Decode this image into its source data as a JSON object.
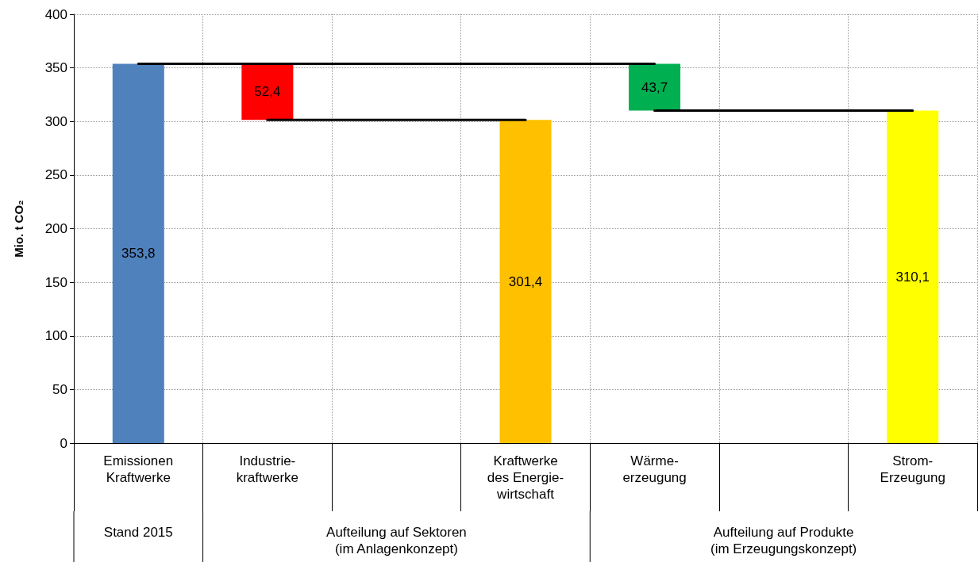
{
  "chart_data": {
    "type": "bar",
    "ylabel": "Mio. t CO₂",
    "categories": [
      "Emissionen\nKraftwerke",
      "Industrie-\nkraftwerke",
      null,
      "Kraftwerke\ndes Energie-\nwirtschaft",
      "Wärme-\nerzeugung",
      null,
      "Strom-\nErzeugung"
    ],
    "series": [
      {
        "values": [
          353.8,
          52.4,
          null,
          301.4,
          43.7,
          null,
          310.1
        ],
        "base": [
          0,
          301.4,
          null,
          0,
          310.1,
          null,
          0
        ],
        "colors": [
          "#4f81bd",
          "#ff0000",
          "#000000",
          "#ffc000",
          "#00b050",
          "#000000",
          "#ffff00"
        ],
        "value_labels": [
          "353,8",
          "52,4",
          null,
          "301,4",
          "43,7",
          null,
          "310,1"
        ]
      },
      {
        "type": "line",
        "color": "#000000",
        "values": [
          353.8,
          353.8,
          353.8,
          353.8,
          353.8,
          null,
          null
        ]
      },
      {
        "type": "line",
        "color": "#000000",
        "values": [
          null,
          301.4,
          301.4,
          301.4,
          null,
          null,
          null
        ]
      },
      {
        "type": "line",
        "color": "#000000",
        "values": [
          null,
          null,
          null,
          null,
          310.1,
          310.1,
          310.1
        ]
      }
    ],
    "marker": "none",
    "ylim": [
      0,
      400
    ],
    "yticks": [
      0,
      50,
      100,
      150,
      200,
      250,
      300,
      350,
      400
    ],
    "grid": true,
    "annotations": [
      "Stand 2015",
      "Aufteilung auf Sektoren\n(im Anlagenkonzept)",
      "Aufteilung auf Produkte\n(im Erzeugungskonzept)"
    ]
  }
}
